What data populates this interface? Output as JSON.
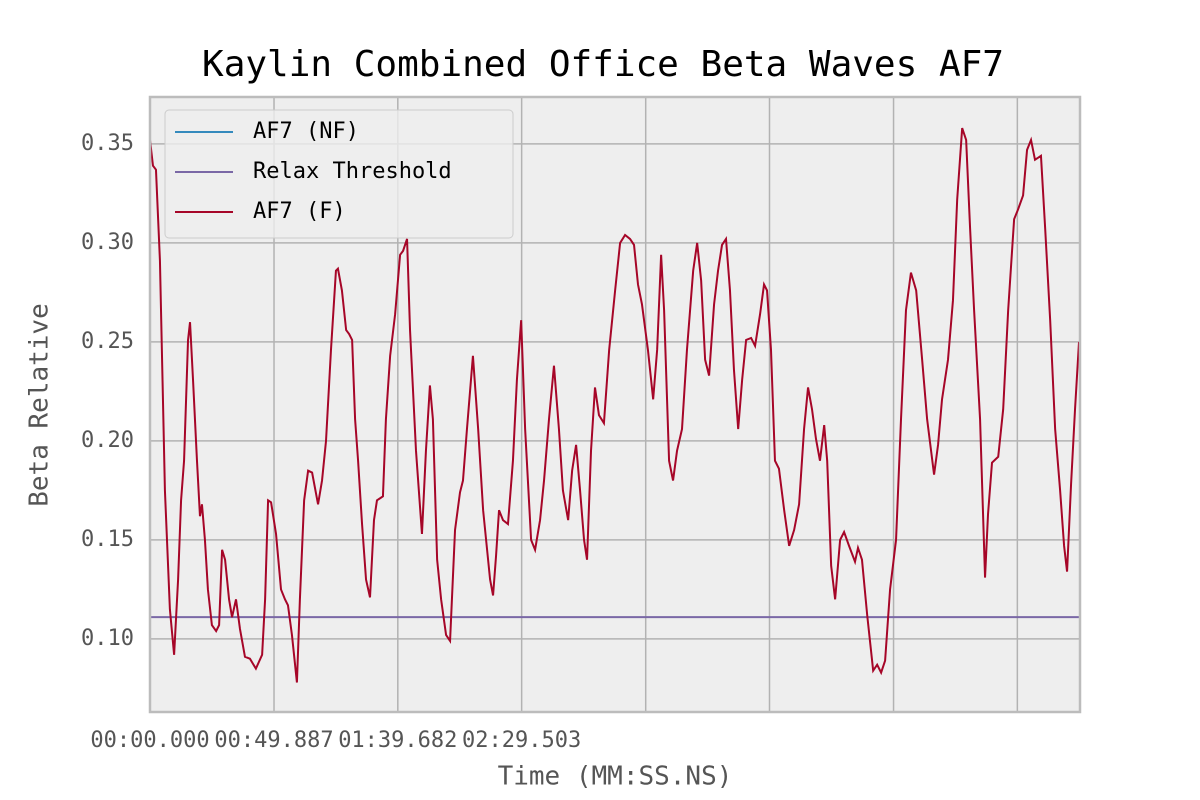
{
  "chart_data": {
    "type": "line",
    "title": "Kaylin Combined Office Beta Waves AF7",
    "xlabel": "Time (MM:SS.NS)",
    "ylabel": "Beta Relative",
    "xlim": [
      0,
      374.1
    ],
    "ylim": [
      0.0631,
      0.3737
    ],
    "xticks": [
      {
        "value": 0,
        "label": "00:00.000"
      },
      {
        "value": 49.887,
        "label": "00:49.887"
      },
      {
        "value": 99.682,
        "label": "01:39.682"
      },
      {
        "value": 149.503,
        "label": "02:29.503"
      },
      {
        "value": 199.4,
        "label": null
      },
      {
        "value": 249.2,
        "label": null
      },
      {
        "value": 299.1,
        "label": null
      },
      {
        "value": 348.9,
        "label": null
      }
    ],
    "yticks": [
      {
        "value": 0.1,
        "label": "0.10"
      },
      0.15,
      {
        "value": 0.2,
        "label": "0.20"
      },
      0.25,
      {
        "value": 0.3,
        "label": "0.30"
      },
      0.35
    ],
    "grid": true,
    "legend": "upper left",
    "series": [
      {
        "name": "AF7 (NF)",
        "color": "#348abd",
        "x": [],
        "values": []
      },
      {
        "name": "Relax Threshold",
        "color": "#7a68a6",
        "x": [
          0,
          374.1
        ],
        "values": [
          0.111,
          0.111
        ]
      },
      {
        "name": "AF7 (F)",
        "color": "#a60628",
        "x": [
          0.0,
          1.2,
          2.4,
          4.0,
          6.0,
          8.0,
          9.7,
          11.3,
          12.5,
          13.7,
          15.3,
          16.1,
          17.3,
          18.9,
          20.1,
          20.9,
          22.1,
          23.3,
          24.9,
          26.6,
          27.8,
          29.0,
          30.2,
          31.8,
          33.0,
          34.6,
          36.2,
          38.2,
          40.2,
          42.6,
          45.1,
          46.3,
          47.5,
          48.7,
          50.7,
          52.7,
          54.3,
          55.5,
          57.1,
          59.1,
          60.3,
          62.0,
          63.6,
          65.2,
          67.6,
          69.2,
          70.8,
          72.8,
          74.8,
          75.6,
          77.2,
          78.9,
          80.1,
          81.3,
          82.5,
          83.7,
          85.3,
          86.9,
          88.5,
          90.1,
          91.3,
          93.7,
          94.9,
          96.6,
          98.6,
          100.6,
          101.8,
          103.4,
          104.6,
          107.0,
          109.4,
          111.0,
          112.6,
          113.8,
          115.5,
          117.1,
          119.1,
          120.7,
          122.7,
          124.7,
          125.9,
          127.5,
          129.9,
          132.0,
          134.0,
          136.8,
          138.0,
          139.2,
          140.4,
          142.0,
          144.0,
          146.0,
          147.6,
          149.3,
          150.9,
          153.3,
          154.9,
          156.9,
          158.5,
          160.5,
          162.5,
          164.5,
          166.1,
          168.2,
          169.8,
          171.4,
          173.0,
          174.6,
          175.8,
          177.4,
          179.0,
          180.6,
          182.6,
          184.7,
          187.1,
          189.1,
          191.1,
          193.1,
          194.7,
          196.3,
          197.9,
          200.3,
          202.4,
          204.0,
          205.6,
          206.8,
          208.8,
          210.4,
          212.0,
          214.0,
          216.0,
          218.5,
          220.1,
          221.7,
          223.3,
          224.9,
          226.9,
          228.5,
          230.1,
          231.7,
          233.3,
          234.9,
          236.6,
          238.2,
          239.8,
          241.8,
          243.4,
          245.4,
          247.0,
          248.2,
          249.8,
          251.4,
          253.0,
          255.1,
          257.1,
          259.1,
          261.1,
          263.1,
          264.7,
          266.3,
          267.9,
          269.5,
          271.2,
          272.4,
          274.0,
          275.6,
          277.6,
          279.2,
          281.2,
          283.6,
          284.8,
          286.4,
          288.5,
          290.9,
          292.5,
          294.1,
          295.7,
          297.7,
          300.1,
          302.1,
          304.1,
          306.1,
          308.2,
          310.6,
          312.6,
          315.4,
          317.0,
          318.6,
          321.0,
          323.0,
          324.7,
          326.7,
          328.3,
          329.9,
          331.5,
          333.9,
          335.9,
          337.1,
          338.7,
          341.2,
          343.2,
          345.2,
          347.6,
          349.2,
          351.2,
          352.8,
          354.4,
          356.0,
          357.2,
          358.4,
          360.1,
          362.1,
          364.1,
          366.1,
          367.7,
          368.9,
          370.5,
          372.1,
          373.7
        ],
        "values": [
          0.352,
          0.339,
          0.337,
          0.291,
          0.175,
          0.115,
          0.092,
          0.13,
          0.17,
          0.19,
          0.251,
          0.26,
          0.231,
          0.19,
          0.162,
          0.168,
          0.15,
          0.125,
          0.107,
          0.104,
          0.107,
          0.145,
          0.14,
          0.12,
          0.111,
          0.12,
          0.105,
          0.091,
          0.09,
          0.085,
          0.092,
          0.12,
          0.17,
          0.169,
          0.153,
          0.125,
          0.12,
          0.117,
          0.102,
          0.078,
          0.12,
          0.17,
          0.185,
          0.184,
          0.168,
          0.18,
          0.2,
          0.246,
          0.286,
          0.287,
          0.276,
          0.256,
          0.254,
          0.251,
          0.211,
          0.19,
          0.158,
          0.13,
          0.121,
          0.16,
          0.17,
          0.172,
          0.211,
          0.243,
          0.264,
          0.294,
          0.296,
          0.302,
          0.256,
          0.195,
          0.153,
          0.195,
          0.228,
          0.211,
          0.14,
          0.12,
          0.102,
          0.099,
          0.155,
          0.174,
          0.18,
          0.206,
          0.243,
          0.206,
          0.165,
          0.13,
          0.122,
          0.142,
          0.165,
          0.16,
          0.158,
          0.19,
          0.231,
          0.261,
          0.206,
          0.15,
          0.145,
          0.16,
          0.18,
          0.211,
          0.238,
          0.206,
          0.175,
          0.16,
          0.185,
          0.198,
          0.175,
          0.15,
          0.14,
          0.195,
          0.227,
          0.213,
          0.209,
          0.246,
          0.276,
          0.3,
          0.304,
          0.302,
          0.299,
          0.279,
          0.269,
          0.246,
          0.221,
          0.246,
          0.294,
          0.266,
          0.19,
          0.18,
          0.195,
          0.206,
          0.246,
          0.286,
          0.3,
          0.281,
          0.241,
          0.233,
          0.269,
          0.286,
          0.299,
          0.302,
          0.276,
          0.236,
          0.206,
          0.231,
          0.251,
          0.252,
          0.248,
          0.264,
          0.279,
          0.276,
          0.246,
          0.19,
          0.186,
          0.165,
          0.147,
          0.155,
          0.168,
          0.206,
          0.227,
          0.216,
          0.201,
          0.19,
          0.208,
          0.19,
          0.137,
          0.12,
          0.15,
          0.154,
          0.147,
          0.139,
          0.146,
          0.14,
          0.112,
          0.084,
          0.087,
          0.083,
          0.089,
          0.125,
          0.15,
          0.211,
          0.266,
          0.285,
          0.276,
          0.241,
          0.211,
          0.183,
          0.198,
          0.221,
          0.241,
          0.271,
          0.322,
          0.358,
          0.352,
          0.307,
          0.266,
          0.211,
          0.131,
          0.163,
          0.189,
          0.192,
          0.216,
          0.266,
          0.312,
          0.317,
          0.324,
          0.347,
          0.352,
          0.342,
          0.343,
          0.344,
          0.307,
          0.261,
          0.206,
          0.175,
          0.147,
          0.134,
          0.178,
          0.216,
          0.25
        ]
      }
    ]
  }
}
